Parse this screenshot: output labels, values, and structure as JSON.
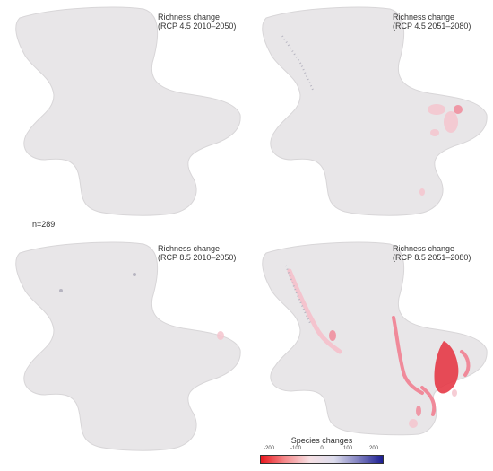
{
  "panels": [
    {
      "id": "p1",
      "title": "Richness change\n(RCP 4.5 2010–2050)"
    },
    {
      "id": "p2",
      "title": "Richness change\n(RCP 4.5 2051–2080)"
    },
    {
      "id": "p3",
      "title": "Richness change\n(RCP 8.5 2010–2050)"
    },
    {
      "id": "p4",
      "title": "Richness change\n(RCP 8.5 2051–2080)"
    }
  ],
  "n_label": "n=289",
  "legend": {
    "title": "Species changes",
    "ticks": [
      "-200",
      "-100",
      "0",
      "100",
      "200"
    ],
    "colors": [
      "#e8171d",
      "#f58a8c",
      "#f6dfe3",
      "#dcdcec",
      "#8080c0",
      "#1c1e92"
    ]
  },
  "colors": {
    "landmass": "#e8e6e8",
    "outline": "#d8d6d8",
    "loss_strong": "#e53946",
    "loss_mid": "#f08a9a",
    "loss_light": "#f4c4ce",
    "grey_dots": "#b6b4c0"
  }
}
